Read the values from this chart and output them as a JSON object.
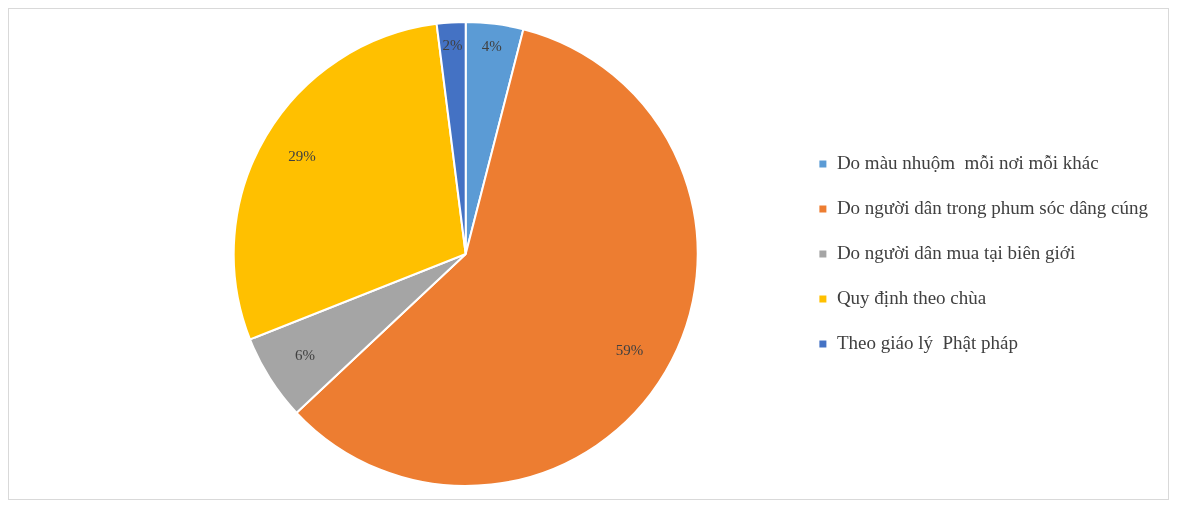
{
  "chart_data": {
    "type": "pie",
    "categories": [
      "Do màu nhuộm  mỗi nơi mỗi khác",
      "Do người dân trong phum sóc dâng cúng",
      "Do người dân mua tại biên giới",
      "Quy định theo chùa",
      "Theo giáo lý  Phật pháp"
    ],
    "values": [
      4,
      59,
      6,
      29,
      2
    ],
    "value_labels": [
      "4%",
      "59%",
      "6%",
      "29%",
      "2%"
    ],
    "colors": [
      "#5b9bd5",
      "#ed7d31",
      "#a5a5a5",
      "#ffc000",
      "#4472c4"
    ],
    "legend": "right"
  }
}
